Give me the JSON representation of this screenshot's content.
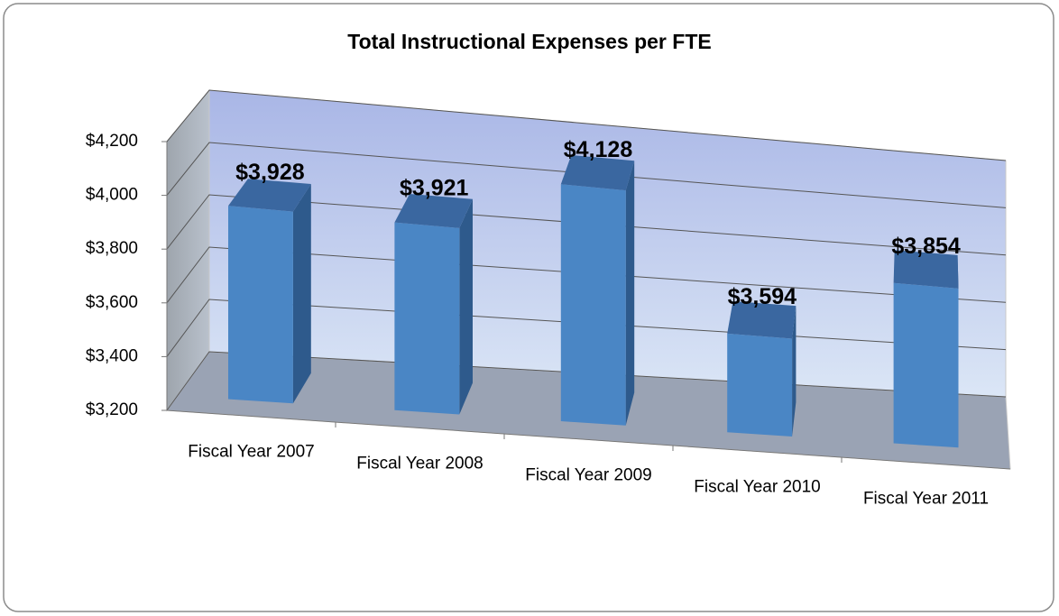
{
  "chart_data": {
    "type": "bar3d",
    "title": "Total Instructional Expenses per FTE",
    "categories": [
      "Fiscal Year 2007",
      "Fiscal Year 2008",
      "Fiscal Year 2009",
      "Fiscal Year 2010",
      "Fiscal Year 2011"
    ],
    "values": [
      3928,
      3921,
      4128,
      3594,
      3854
    ],
    "value_labels": [
      "$3,928",
      "$3,921",
      "$4,128",
      "$3,594",
      "$3,854"
    ],
    "color": "#4a86c5",
    "ylim": [
      3200,
      4200
    ],
    "yticks": [
      {
        "value": 3200,
        "label": "$3,200"
      },
      {
        "value": 3400,
        "label": "$3,400"
      },
      {
        "value": 3600,
        "label": "$3,600"
      },
      {
        "value": 3800,
        "label": "$3,800"
      },
      {
        "value": 4000,
        "label": "$4,000"
      },
      {
        "value": 4200,
        "label": "$4,200"
      }
    ],
    "grid": true
  }
}
